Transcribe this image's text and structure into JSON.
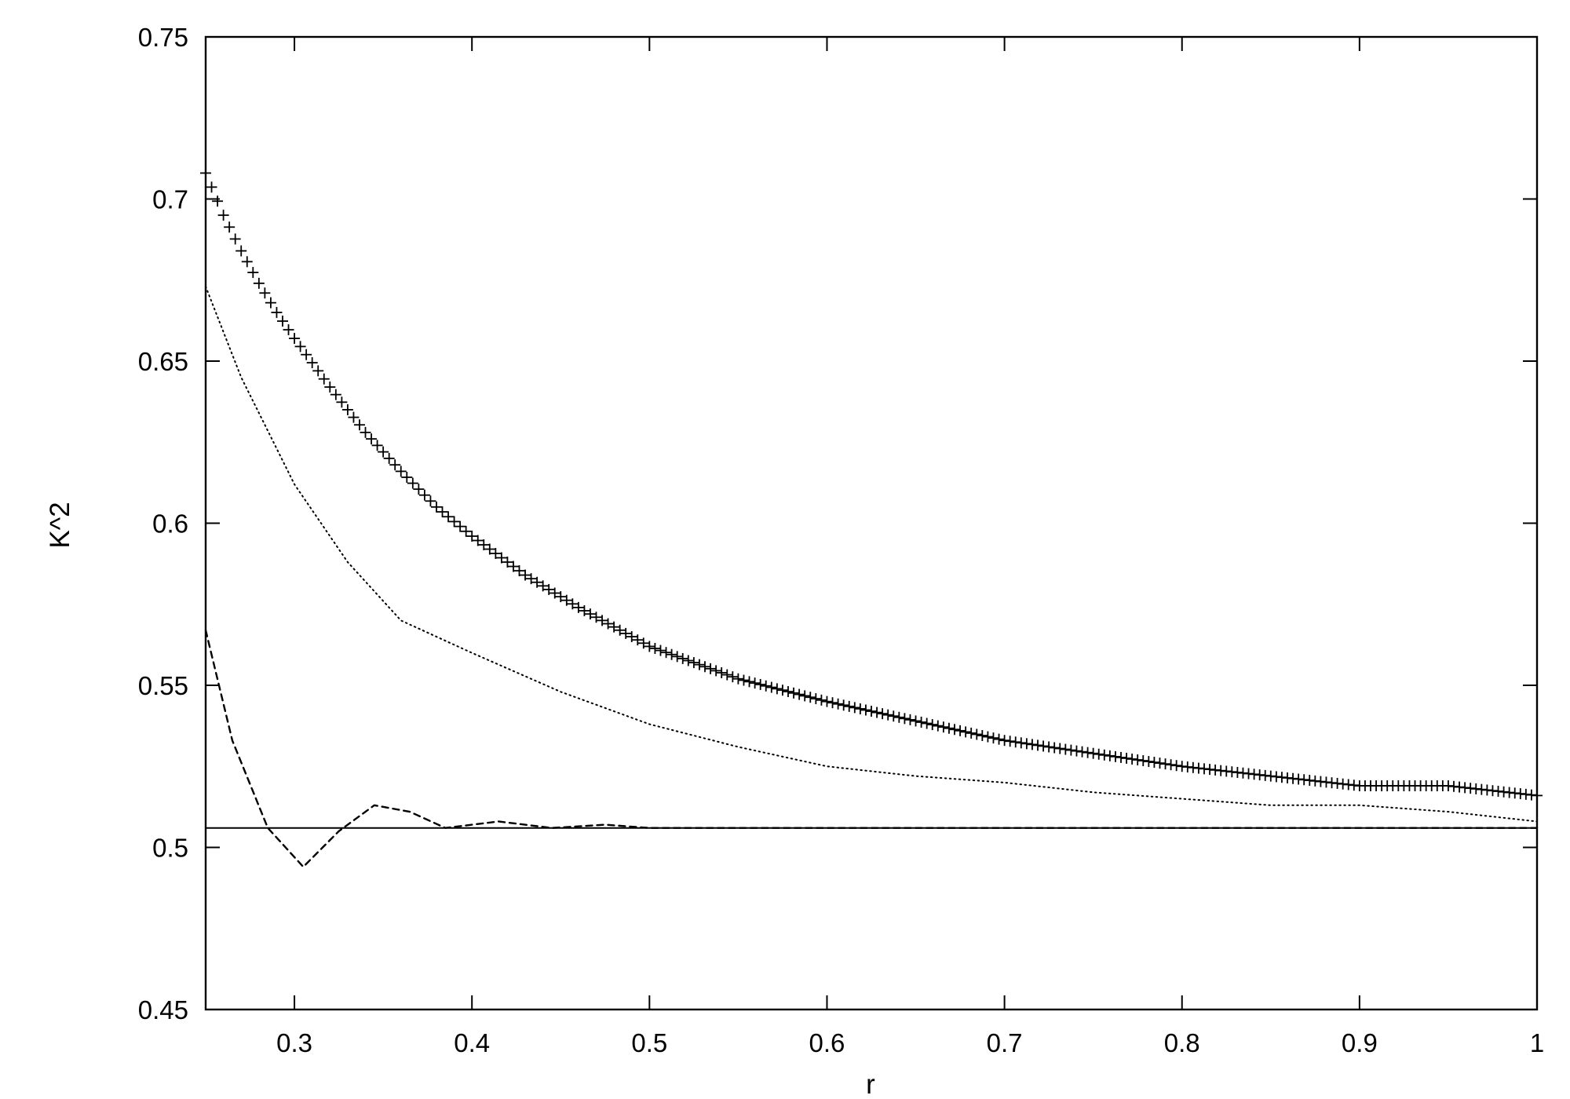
{
  "chart_data": {
    "type": "line",
    "title": "",
    "xlabel": "r",
    "ylabel": "K^2",
    "xlim": [
      0.25,
      1.0
    ],
    "ylim": [
      0.45,
      0.75
    ],
    "xticks": [
      "0.3",
      "0.4",
      "0.5",
      "0.6",
      "0.7",
      "0.8",
      "0.9",
      "1"
    ],
    "xtick_values": [
      0.3,
      0.4,
      0.5,
      0.6,
      0.7,
      0.8,
      0.9,
      1.0
    ],
    "yticks": [
      "0.45",
      "0.5",
      "0.55",
      "0.6",
      "0.65",
      "0.7",
      "0.75"
    ],
    "ytick_values": [
      0.45,
      0.5,
      0.55,
      0.6,
      0.65,
      0.7,
      0.75
    ],
    "grid": false,
    "legend": "none",
    "colors": {
      "line": "#000000",
      "background": "#ffffff"
    },
    "series": [
      {
        "style": "plus-markers",
        "x": [
          0.25,
          0.26,
          0.27,
          0.28,
          0.29,
          0.3,
          0.32,
          0.34,
          0.36,
          0.38,
          0.4,
          0.43,
          0.46,
          0.5,
          0.55,
          0.6,
          0.65,
          0.7,
          0.75,
          0.8,
          0.85,
          0.9,
          0.95,
          1.0
        ],
        "y": [
          0.708,
          0.695,
          0.684,
          0.674,
          0.665,
          0.657,
          0.642,
          0.628,
          0.616,
          0.605,
          0.596,
          0.584,
          0.574,
          0.562,
          0.552,
          0.545,
          0.539,
          0.533,
          0.529,
          0.525,
          0.522,
          0.519,
          0.519,
          0.516
        ]
      },
      {
        "style": "dotted",
        "x": [
          0.25,
          0.27,
          0.3,
          0.33,
          0.36,
          0.4,
          0.45,
          0.5,
          0.55,
          0.6,
          0.65,
          0.7,
          0.75,
          0.8,
          0.85,
          0.9,
          0.95,
          1.0
        ],
        "y": [
          0.673,
          0.645,
          0.612,
          0.588,
          0.57,
          0.56,
          0.548,
          0.538,
          0.531,
          0.525,
          0.522,
          0.52,
          0.517,
          0.515,
          0.513,
          0.513,
          0.511,
          0.508
        ]
      },
      {
        "style": "dashed",
        "x": [
          0.25,
          0.265,
          0.285,
          0.305,
          0.325,
          0.345,
          0.365,
          0.385,
          0.415,
          0.445,
          0.475,
          0.5,
          0.53,
          0.6,
          0.7,
          0.8,
          0.9,
          1.0
        ],
        "y": [
          0.567,
          0.533,
          0.506,
          0.494,
          0.505,
          0.513,
          0.511,
          0.506,
          0.508,
          0.506,
          0.507,
          0.506,
          0.506,
          0.506,
          0.506,
          0.506,
          0.506,
          0.506
        ]
      },
      {
        "style": "solid-reference",
        "x": [
          0.25,
          1.0
        ],
        "y": [
          0.506,
          0.506
        ]
      }
    ]
  }
}
